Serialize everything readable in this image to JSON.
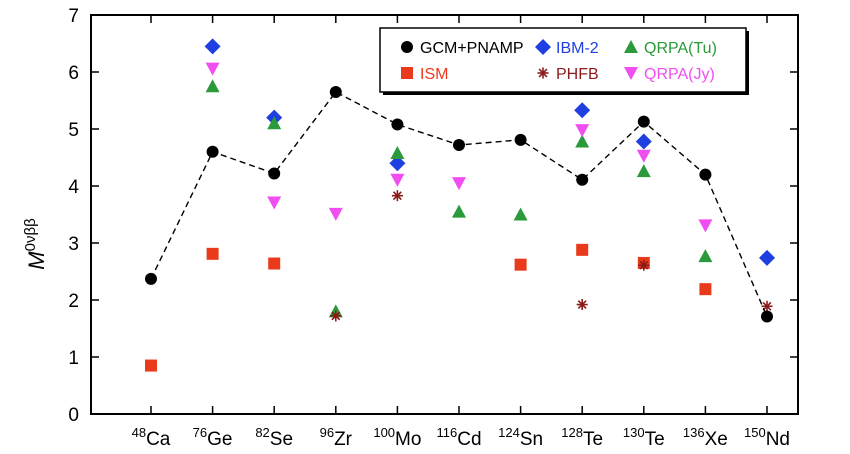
{
  "chart_data": {
    "type": "scatter",
    "title": "",
    "ylabel": "M",
    "ylabel_sup": "0νββ",
    "xlabel": "",
    "ylim": [
      0,
      7
    ],
    "yticks": [
      "0",
      "1",
      "2",
      "3",
      "4",
      "5",
      "6",
      "7"
    ],
    "grid": false,
    "legend_position": "top-right",
    "categories": [
      {
        "mass": "48",
        "el": "Ca"
      },
      {
        "mass": "76",
        "el": "Ge"
      },
      {
        "mass": "82",
        "el": "Se"
      },
      {
        "mass": "96",
        "el": "Zr"
      },
      {
        "mass": "100",
        "el": "Mo"
      },
      {
        "mass": "116",
        "el": "Cd"
      },
      {
        "mass": "124",
        "el": "Sn"
      },
      {
        "mass": "128",
        "el": "Te"
      },
      {
        "mass": "130",
        "el": "Te"
      },
      {
        "mass": "136",
        "el": "Xe"
      },
      {
        "mass": "150",
        "el": "Nd"
      }
    ],
    "series": [
      {
        "name": "GCM+PNAMP",
        "color": "#000000",
        "marker": "circle",
        "connected": true,
        "values": [
          2.37,
          4.6,
          4.22,
          5.65,
          5.08,
          4.72,
          4.81,
          4.11,
          5.13,
          4.2,
          1.71
        ]
      },
      {
        "name": "IBM-2",
        "color": "#1f3fe0",
        "marker": "diamond",
        "connected": false,
        "values": [
          null,
          6.45,
          5.2,
          null,
          4.4,
          null,
          null,
          5.33,
          4.78,
          null,
          2.74
        ]
      },
      {
        "name": "QRPA(Tu)",
        "color": "#2a9a3a",
        "marker": "triangle-up",
        "connected": false,
        "values": [
          null,
          5.75,
          5.1,
          1.8,
          4.58,
          3.55,
          3.5,
          4.78,
          4.26,
          2.77,
          null
        ]
      },
      {
        "name": "ISM",
        "color": "#ea3a1c",
        "marker": "square",
        "connected": false,
        "values": [
          0.85,
          2.81,
          2.64,
          null,
          null,
          null,
          2.62,
          2.88,
          2.65,
          2.19,
          null
        ]
      },
      {
        "name": "PHFB",
        "color": "#8b1a1a",
        "marker": "asterisk",
        "connected": false,
        "values": [
          null,
          null,
          null,
          1.72,
          3.83,
          null,
          null,
          1.92,
          2.61,
          null,
          1.89
        ]
      },
      {
        "name": "QRPA(Jy)",
        "color": "#f04ef0",
        "marker": "triangle-down",
        "connected": false,
        "values": [
          null,
          6.06,
          3.71,
          3.51,
          4.11,
          4.05,
          null,
          4.98,
          4.53,
          3.31,
          null
        ]
      }
    ]
  }
}
